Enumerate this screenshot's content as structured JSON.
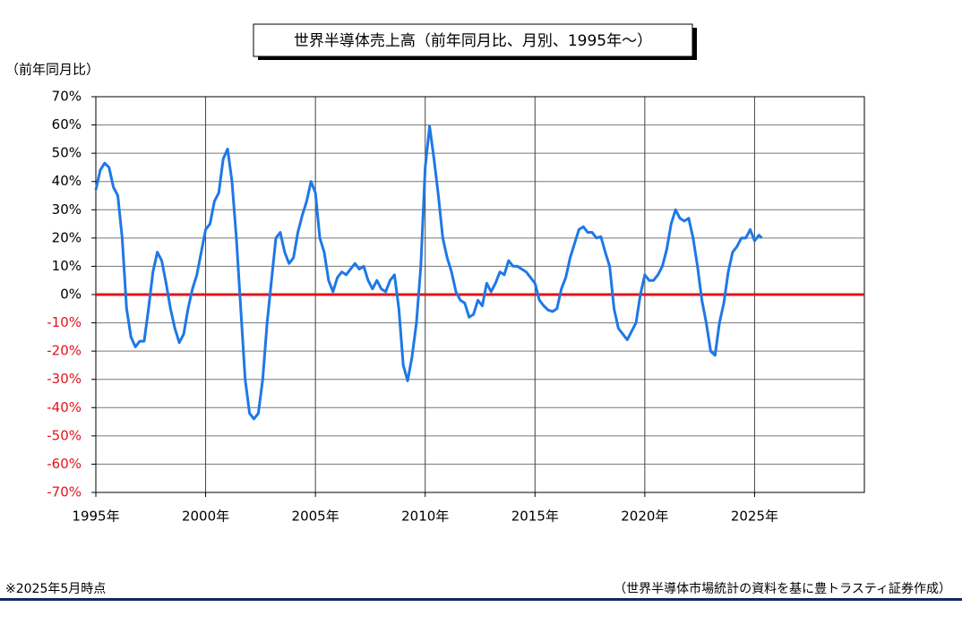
{
  "chart_data": {
    "type": "line",
    "title": "世界半導体売上高（前年同月比、月別、1995年～）",
    "y_label": "（前年同月比）",
    "note": "※2025年5月時点",
    "source": "（世界半導体市場統計の資料を基に豊トラスティ証券作成）",
    "x": [
      1995.0,
      1995.2,
      1995.4,
      1995.6,
      1995.8,
      1996.0,
      1996.2,
      1996.4,
      1996.6,
      1996.8,
      1997.0,
      1997.2,
      1997.4,
      1997.6,
      1997.8,
      1998.0,
      1998.2,
      1998.4,
      1998.6,
      1998.8,
      1999.0,
      1999.2,
      1999.4,
      1999.6,
      1999.8,
      2000.0,
      2000.2,
      2000.4,
      2000.6,
      2000.8,
      2001.0,
      2001.2,
      2001.4,
      2001.6,
      2001.8,
      2002.0,
      2002.2,
      2002.4,
      2002.6,
      2002.8,
      2003.0,
      2003.2,
      2003.4,
      2003.6,
      2003.8,
      2004.0,
      2004.2,
      2004.4,
      2004.6,
      2004.8,
      2005.0,
      2005.2,
      2005.4,
      2005.6,
      2005.8,
      2006.0,
      2006.2,
      2006.4,
      2006.6,
      2006.8,
      2007.0,
      2007.2,
      2007.4,
      2007.6,
      2007.8,
      2008.0,
      2008.2,
      2008.4,
      2008.6,
      2008.8,
      2009.0,
      2009.2,
      2009.4,
      2009.6,
      2009.8,
      2010.0,
      2010.2,
      2010.4,
      2010.6,
      2010.8,
      2011.0,
      2011.2,
      2011.4,
      2011.6,
      2011.8,
      2012.0,
      2012.2,
      2012.4,
      2012.6,
      2012.8,
      2013.0,
      2013.2,
      2013.4,
      2013.6,
      2013.8,
      2014.0,
      2014.2,
      2014.4,
      2014.6,
      2014.8,
      2015.0,
      2015.2,
      2015.4,
      2015.6,
      2015.8,
      2016.0,
      2016.2,
      2016.4,
      2016.6,
      2016.8,
      2017.0,
      2017.2,
      2017.4,
      2017.6,
      2017.8,
      2018.0,
      2018.2,
      2018.4,
      2018.6,
      2018.8,
      2019.0,
      2019.2,
      2019.4,
      2019.6,
      2019.8,
      2020.0,
      2020.2,
      2020.4,
      2020.6,
      2020.8,
      2021.0,
      2021.2,
      2021.4,
      2021.6,
      2021.8,
      2022.0,
      2022.2,
      2022.4,
      2022.6,
      2022.8,
      2023.0,
      2023.2,
      2023.4,
      2023.6,
      2023.8,
      2024.0,
      2024.2,
      2024.4,
      2024.6,
      2024.8,
      2025.0,
      2025.2,
      2025.33
    ],
    "series": [
      {
        "color": "#1f78e6",
        "values": [
          37,
          44,
          46.5,
          45,
          38,
          35,
          20,
          -5,
          -15,
          -18.5,
          -16.5,
          -16.5,
          -5,
          8,
          15,
          12,
          4,
          -5,
          -12,
          -17,
          -14,
          -5,
          2,
          7,
          15,
          23,
          25,
          33,
          36,
          48,
          51.5,
          40,
          20,
          -5,
          -30,
          -42,
          -44,
          -42,
          -30,
          -10,
          5,
          20,
          22,
          15,
          11,
          13,
          22,
          28,
          33,
          40,
          36,
          20,
          15,
          5,
          1,
          6,
          8,
          7,
          9,
          11,
          9,
          10,
          5,
          2,
          5,
          2,
          1,
          5,
          7,
          -5,
          -25,
          -30.5,
          -22,
          -10,
          10,
          45,
          59.5,
          48,
          35,
          20,
          13,
          8,
          1,
          -2,
          -3,
          -8,
          -7,
          -2,
          -4,
          4,
          1,
          4,
          8,
          7,
          12,
          10,
          10,
          9,
          8,
          6,
          4,
          -2,
          -4,
          -5.5,
          -6,
          -5,
          2,
          6,
          13,
          18,
          23,
          24,
          22,
          22,
          20,
          20.5,
          15,
          10,
          -5,
          -12,
          -14,
          -16,
          -13,
          -10,
          0,
          7,
          5,
          5,
          7,
          10,
          16,
          25,
          30,
          27,
          26,
          27,
          20,
          10,
          -2,
          -10,
          -20,
          -21.5,
          -10,
          -3,
          8,
          15,
          17,
          20,
          20,
          23,
          19,
          21,
          20
        ]
      }
    ],
    "xlim": [
      1995,
      2030
    ],
    "xticks": [
      {
        "value": 1995,
        "label": "1995年"
      },
      {
        "value": 2000,
        "label": "2000年"
      },
      {
        "value": 2005,
        "label": "2005年"
      },
      {
        "value": 2010,
        "label": "2010年"
      },
      {
        "value": 2015,
        "label": "2015年"
      },
      {
        "value": 2020,
        "label": "2020年"
      },
      {
        "value": 2025,
        "label": "2025年"
      }
    ],
    "ylim": [
      -70,
      70
    ],
    "yticks": [
      {
        "value": -70,
        "label": "-70%"
      },
      {
        "value": -60,
        "label": "-60%"
      },
      {
        "value": -50,
        "label": "-50%"
      },
      {
        "value": -40,
        "label": "-40%"
      },
      {
        "value": -30,
        "label": "-30%"
      },
      {
        "value": -20,
        "label": "-20%"
      },
      {
        "value": -10,
        "label": "-10%"
      },
      {
        "value": 0,
        "label": "0%"
      },
      {
        "value": 10,
        "label": "10%"
      },
      {
        "value": 20,
        "label": "20%"
      },
      {
        "value": 30,
        "label": "30%"
      },
      {
        "value": 40,
        "label": "40%"
      },
      {
        "value": 50,
        "label": "50%"
      },
      {
        "value": 60,
        "label": "60%"
      },
      {
        "value": 70,
        "label": "70%"
      }
    ],
    "grid": true,
    "zero_line_color": "#e0141b",
    "negative_label_color": "#e0141b"
  }
}
